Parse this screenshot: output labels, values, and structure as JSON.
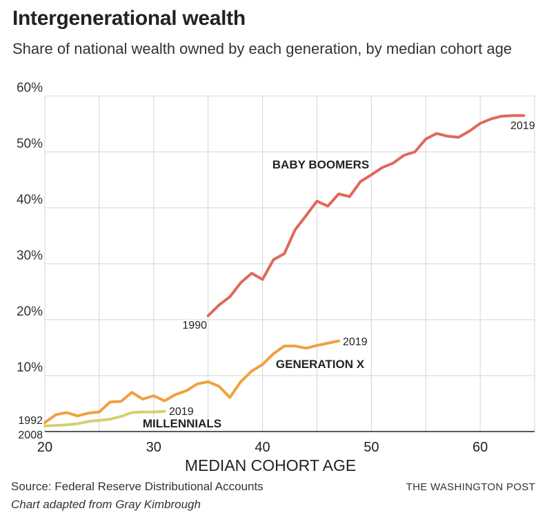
{
  "header": {
    "title": "Intergenerational wealth",
    "subtitle": "Share of national wealth owned by each generation, by median cohort age"
  },
  "footer": {
    "source": "Source: Federal Reserve Distributional Accounts",
    "credit": "Chart adapted from Gray Kimbrough",
    "brand": "THE WASHINGTON POST"
  },
  "chart_data": {
    "type": "line",
    "title": "Intergenerational wealth",
    "xlabel": "MEDIAN COHORT AGE",
    "ylabel": "",
    "xlim": [
      20,
      65
    ],
    "ylim": [
      0,
      60
    ],
    "x_ticks": [
      20,
      30,
      40,
      50,
      60
    ],
    "x_tick_labels": [
      "20",
      "30",
      "40",
      "50",
      "60"
    ],
    "y_ticks": [
      10,
      20,
      30,
      40,
      50,
      60
    ],
    "y_tick_labels": [
      "10%",
      "20%",
      "30%",
      "40%",
      "50%",
      "60%"
    ],
    "grid": true,
    "series": [
      {
        "name": "BABY BOOMERS",
        "color": "#e0685a",
        "start_label": "1990",
        "end_label": "2019",
        "x": [
          35,
          36,
          37,
          38,
          39,
          40,
          41,
          42,
          43,
          44,
          45,
          46,
          47,
          48,
          49,
          50,
          51,
          52,
          53,
          54,
          55,
          56,
          57,
          58,
          59,
          60,
          61,
          62,
          63,
          64
        ],
        "values": [
          20.7,
          22.6,
          24.1,
          26.6,
          28.3,
          27.2,
          30.7,
          31.8,
          36.1,
          38.6,
          41.2,
          40.3,
          42.5,
          42.0,
          44.7,
          45.9,
          47.2,
          48.0,
          49.4,
          50.0,
          52.3,
          53.3,
          52.8,
          52.6,
          53.7,
          55.1,
          55.9,
          56.4,
          56.5,
          56.5
        ]
      },
      {
        "name": "GENERATION X",
        "color": "#f0a040",
        "start_label": "1992",
        "end_label": "2019",
        "x": [
          20,
          21,
          22,
          23,
          24,
          25,
          26,
          27,
          28,
          29,
          30,
          31,
          32,
          33,
          34,
          35,
          36,
          37,
          38,
          39,
          40,
          41,
          42,
          43,
          44,
          45,
          46,
          47
        ],
        "values": [
          1.6,
          3.0,
          3.4,
          2.8,
          3.3,
          3.5,
          5.3,
          5.4,
          7.0,
          5.8,
          6.4,
          5.5,
          6.6,
          7.3,
          8.5,
          8.9,
          8.1,
          6.1,
          8.9,
          10.8,
          12.0,
          13.9,
          15.3,
          15.3,
          14.9,
          15.4,
          15.8,
          16.2
        ]
      },
      {
        "name": "MILLENNIALS",
        "color": "#d6cf6e",
        "start_label": "2008",
        "end_label": "2019",
        "x": [
          20,
          21,
          22,
          23,
          24,
          25,
          26,
          27,
          28,
          29,
          30,
          31
        ],
        "values": [
          1.0,
          1.1,
          1.2,
          1.4,
          1.8,
          2.0,
          2.2,
          2.7,
          3.4,
          3.5,
          3.5,
          3.6
        ]
      }
    ]
  }
}
